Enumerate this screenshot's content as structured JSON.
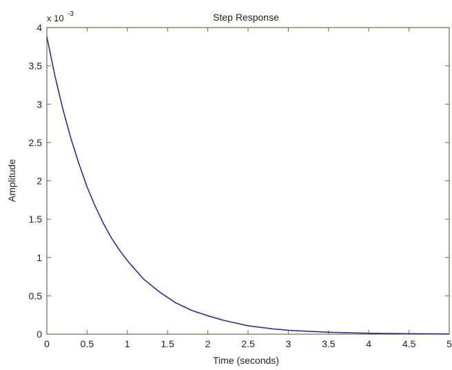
{
  "chart_data": {
    "type": "line",
    "title": "Step Response",
    "xlabel": "Time (seconds)",
    "ylabel": "Amplitude",
    "y_multiplier_base": "x 10",
    "y_multiplier_exp": "-3",
    "xlim": [
      0,
      5
    ],
    "ylim": [
      0,
      4
    ],
    "x_ticks": [
      0,
      0.5,
      1,
      1.5,
      2,
      2.5,
      3,
      3.5,
      4,
      4.5,
      5
    ],
    "x_tick_labels": [
      "0",
      "0.5",
      "1",
      "1.5",
      "2",
      "2.5",
      "3",
      "3.5",
      "4",
      "4.5",
      "5"
    ],
    "y_ticks": [
      0,
      0.5,
      1,
      1.5,
      2,
      2.5,
      3,
      3.5,
      4
    ],
    "y_tick_labels": [
      "0",
      "0.5",
      "1",
      "1.5",
      "2",
      "2.5",
      "3",
      "3.5",
      "4"
    ],
    "grid": false,
    "series": [
      {
        "color": "#2b2b9a",
        "x": [
          0,
          0.1,
          0.2,
          0.3,
          0.4,
          0.5,
          0.6,
          0.7,
          0.8,
          0.9,
          1.0,
          1.2,
          1.4,
          1.6,
          1.8,
          2.0,
          2.2,
          2.5,
          2.8,
          3.0,
          3.5,
          4.0,
          4.5,
          5.0
        ],
        "y": [
          3.88,
          3.37,
          2.93,
          2.55,
          2.22,
          1.92,
          1.67,
          1.45,
          1.26,
          1.1,
          0.96,
          0.72,
          0.55,
          0.41,
          0.31,
          0.24,
          0.18,
          0.11,
          0.07,
          0.05,
          0.025,
          0.012,
          0.006,
          0.003
        ]
      }
    ]
  },
  "colors": {
    "axes": "#6b6b4e",
    "line": "#2b2b9a",
    "text": "#222222"
  }
}
